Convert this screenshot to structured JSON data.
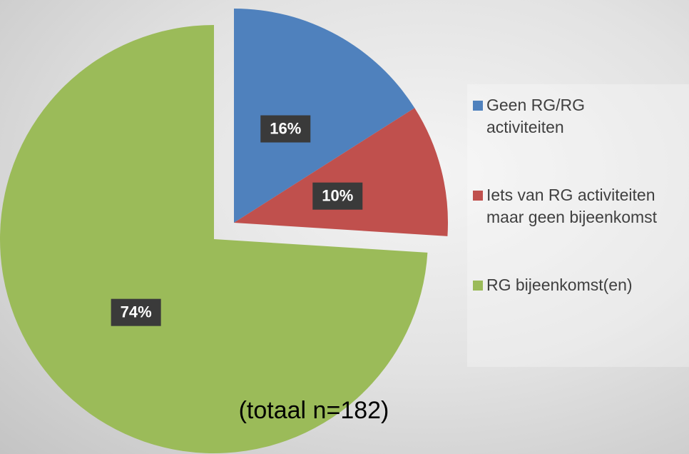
{
  "chart_data": {
    "type": "pie",
    "categories": [
      "Geen RG/RG activiteiten",
      "Iets van RG activiteiten maar geen bijeenkomst",
      "RG bijeenkomst(en)"
    ],
    "values": [
      16,
      10,
      74
    ],
    "value_labels": [
      "16%",
      "10%",
      "74%"
    ],
    "colors": [
      "#4f81bd",
      "#c0504d",
      "#9bbb59"
    ],
    "explode": [
      true,
      true,
      false
    ],
    "annotation": "(totaal n=182)",
    "legend": "right"
  }
}
